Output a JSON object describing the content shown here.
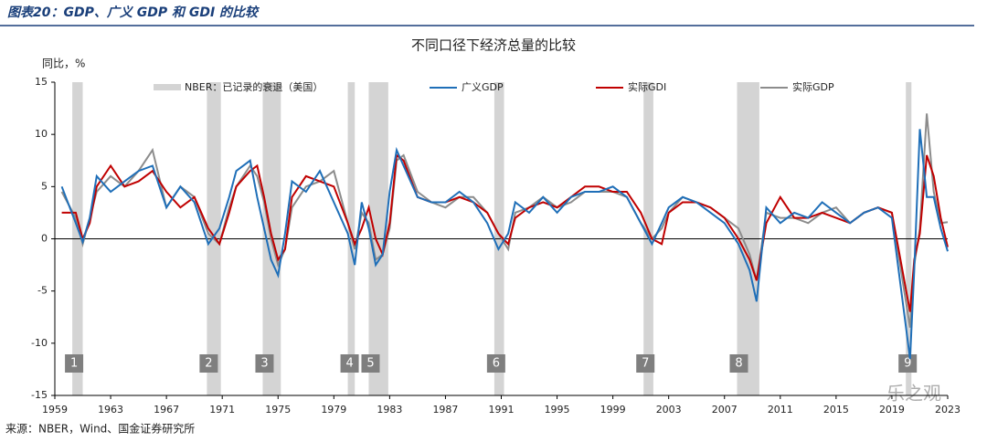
{
  "header": "图表20：GDP、广义 GDP 和 GDI 的比较",
  "source": "来源：NBER，Wind、国金证券研究所",
  "watermark": "乐之观",
  "chart_data": {
    "type": "line",
    "title": "不同口径下经济总量的比较",
    "ylabel": "同比，%",
    "xlim": [
      1959,
      2023
    ],
    "xticks": [
      1959,
      1963,
      1967,
      1971,
      1975,
      1979,
      1983,
      1987,
      1991,
      1995,
      1999,
      2003,
      2007,
      2011,
      2015,
      2019,
      2023
    ],
    "ylim": [
      -15,
      15
    ],
    "yticks": [
      -15,
      -10,
      -5,
      0,
      5,
      10,
      15
    ],
    "recession_name": "NBER：已记录的衰退（美国）",
    "recession_color": "#d4d4d4",
    "recessions": [
      {
        "start": 1960.25,
        "end": 1961.0,
        "label": "1"
      },
      {
        "start": 1969.9,
        "end": 1970.9,
        "label": "2"
      },
      {
        "start": 1973.9,
        "end": 1975.2,
        "label": "3"
      },
      {
        "start": 1980.0,
        "end": 1980.5,
        "label": "4"
      },
      {
        "start": 1981.5,
        "end": 1982.9,
        "label": "5"
      },
      {
        "start": 1990.5,
        "end": 1991.2,
        "label": "6"
      },
      {
        "start": 2001.2,
        "end": 2001.9,
        "label": "7"
      },
      {
        "start": 2007.9,
        "end": 2009.5,
        "label": "8"
      },
      {
        "start": 2020.0,
        "end": 2020.4,
        "label": "9"
      }
    ],
    "x": [
      1959.5,
      1960.5,
      1961.0,
      1961.5,
      1962,
      1963,
      1964,
      1965,
      1966,
      1967,
      1968,
      1969,
      1970,
      1970.8,
      1971.5,
      1972,
      1973,
      1973.5,
      1974,
      1974.5,
      1975,
      1975.5,
      1976,
      1977,
      1978,
      1979,
      1980,
      1980.5,
      1981,
      1981.5,
      1982,
      1982.5,
      1983,
      1983.5,
      1984,
      1985,
      1986,
      1987,
      1988,
      1989,
      1990,
      1990.8,
      1991.5,
      1992,
      1993,
      1994,
      1995,
      1996,
      1997,
      1998,
      1999,
      2000,
      2001,
      2001.8,
      2002.5,
      2003,
      2004,
      2005,
      2006,
      2007,
      2008,
      2008.8,
      2009.3,
      2010,
      2011,
      2012,
      2013,
      2014,
      2015,
      2016,
      2017,
      2018,
      2019,
      2020.3,
      2020.6,
      2021,
      2021.5,
      2022,
      2022.5,
      2023
    ],
    "series": [
      {
        "name": "广义GDP",
        "color": "#1f6fb8",
        "values": [
          5.0,
          1.5,
          -0.3,
          2.0,
          6.0,
          4.5,
          5.5,
          6.5,
          7.0,
          3.0,
          5.0,
          3.5,
          -0.5,
          1.0,
          4.0,
          6.5,
          7.5,
          4.0,
          1.0,
          -2.0,
          -3.5,
          0.5,
          5.5,
          4.5,
          6.5,
          3.5,
          0.5,
          -2.5,
          3.5,
          1.0,
          -2.5,
          -1.5,
          4.5,
          8.5,
          7.0,
          4.0,
          3.5,
          3.5,
          4.5,
          3.5,
          1.5,
          -1.0,
          0.5,
          3.5,
          2.5,
          4.0,
          2.5,
          4.0,
          4.5,
          4.5,
          5.0,
          4.0,
          1.5,
          -0.5,
          1.5,
          3.0,
          4.0,
          3.5,
          2.5,
          1.5,
          -0.5,
          -3.0,
          -6.0,
          3.0,
          1.5,
          2.5,
          2.0,
          3.5,
          2.5,
          1.5,
          2.5,
          3.0,
          2.0,
          -11.5,
          -3.0,
          10.5,
          4.0,
          4.0,
          1.0,
          -1.2
        ]
      },
      {
        "name": "实际GDI",
        "color": "#c00000",
        "values": [
          2.5,
          2.5,
          0.0,
          1.5,
          5.0,
          7.0,
          5.0,
          5.5,
          6.5,
          4.5,
          3.0,
          4.0,
          1.0,
          -0.5,
          2.5,
          5.0,
          6.5,
          7.0,
          4.0,
          0.5,
          -2.0,
          -1.0,
          4.0,
          6.0,
          5.5,
          5.0,
          1.5,
          -0.5,
          1.0,
          3.0,
          0.0,
          -1.5,
          1.5,
          8.0,
          7.5,
          4.0,
          3.5,
          3.5,
          4.0,
          3.5,
          2.5,
          0.5,
          -0.5,
          2.0,
          3.0,
          3.5,
          3.0,
          4.0,
          5.0,
          5.0,
          4.5,
          4.5,
          2.5,
          0.0,
          -0.5,
          2.5,
          3.5,
          3.5,
          3.0,
          2.0,
          0.0,
          -2.0,
          -4.0,
          1.5,
          4.0,
          2.0,
          2.0,
          2.5,
          2.0,
          1.5,
          2.5,
          3.0,
          2.5,
          -7.0,
          -2.0,
          0.5,
          8.0,
          6.0,
          2.0,
          -0.8
        ]
      },
      {
        "name": "实际GDP",
        "color": "#8c8c8c",
        "values": [
          4.5,
          2.0,
          -0.5,
          2.0,
          4.5,
          6.0,
          5.0,
          6.5,
          8.5,
          3.0,
          5.0,
          4.0,
          0.5,
          -0.5,
          3.0,
          5.0,
          7.0,
          6.0,
          3.5,
          0.0,
          -2.5,
          -1.0,
          3.0,
          5.0,
          5.5,
          6.5,
          1.5,
          -1.0,
          2.5,
          1.5,
          -2.0,
          -1.5,
          1.0,
          7.5,
          8.0,
          4.5,
          3.5,
          3.0,
          4.0,
          4.0,
          2.5,
          0.5,
          -1.0,
          2.5,
          3.0,
          4.0,
          3.0,
          3.5,
          4.5,
          4.5,
          4.5,
          4.0,
          1.5,
          0.0,
          1.0,
          2.5,
          4.0,
          3.5,
          3.0,
          2.0,
          1.0,
          -1.5,
          -4.0,
          2.5,
          2.0,
          2.0,
          1.5,
          2.5,
          3.0,
          1.5,
          2.5,
          3.0,
          2.5,
          -8.5,
          -2.5,
          1.0,
          12.0,
          4.5,
          1.5,
          1.6
        ]
      }
    ]
  }
}
